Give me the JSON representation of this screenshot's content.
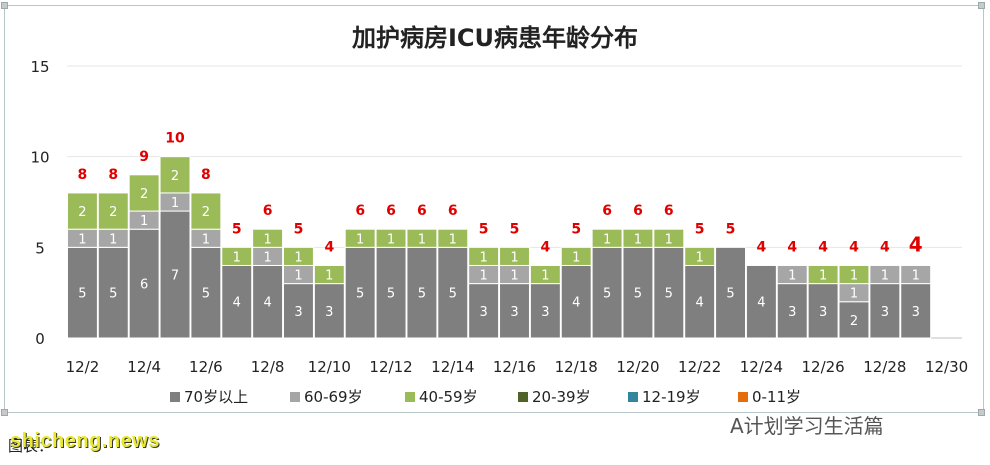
{
  "chart_data": {
    "type": "bar",
    "stacked": true,
    "title": "加护病房ICU病患年龄分布",
    "ylim": [
      0,
      15
    ],
    "yticks": [
      "0",
      "5",
      "10",
      "15"
    ],
    "grid": true,
    "legend_position": "bottom",
    "categories": [
      "12/2",
      "12/3",
      "12/4",
      "12/5",
      "12/6",
      "12/7",
      "12/8",
      "12/9",
      "12/10",
      "12/11",
      "12/12",
      "12/13",
      "12/14",
      "12/15",
      "12/16",
      "12/17",
      "12/18",
      "12/19",
      "12/20",
      "12/21",
      "12/22",
      "12/23",
      "12/24",
      "12/25",
      "12/26",
      "12/27",
      "12/28",
      "12/29",
      "12/30"
    ],
    "tick_labels": [
      "12/2",
      "",
      "12/4",
      "",
      "12/6",
      "",
      "12/8",
      "",
      "12/10",
      "",
      "12/12",
      "",
      "12/14",
      "",
      "12/16",
      "",
      "12/18",
      "",
      "12/20",
      "",
      "12/22",
      "",
      "12/24",
      "",
      "12/26",
      "",
      "12/28",
      "",
      "12/30"
    ],
    "series": [
      {
        "name": "70岁以上",
        "color": "#7f7f7f",
        "values": [
          5,
          5,
          6,
          7,
          5,
          4,
          4,
          3,
          3,
          5,
          5,
          5,
          5,
          3,
          3,
          3,
          4,
          5,
          5,
          5,
          4,
          5,
          4,
          3,
          3,
          2,
          3,
          3,
          0
        ]
      },
      {
        "name": "60-69岁",
        "color": "#a6a6a6",
        "values": [
          1,
          1,
          1,
          1,
          1,
          0,
          1,
          1,
          0,
          0,
          0,
          0,
          0,
          1,
          1,
          0,
          0,
          0,
          0,
          0,
          0,
          0,
          0,
          1,
          0,
          1,
          1,
          1,
          0
        ]
      },
      {
        "name": "40-59岁",
        "color": "#9bbb59",
        "values": [
          2,
          2,
          2,
          2,
          2,
          1,
          1,
          1,
          1,
          1,
          1,
          1,
          1,
          1,
          1,
          1,
          1,
          1,
          1,
          1,
          1,
          0,
          0,
          0,
          1,
          1,
          0,
          0,
          0
        ]
      },
      {
        "name": "20-39岁",
        "color": "#4f6228",
        "values": [
          0,
          0,
          0,
          0,
          0,
          0,
          0,
          0,
          0,
          0,
          0,
          0,
          0,
          0,
          0,
          0,
          0,
          0,
          0,
          0,
          0,
          0,
          0,
          0,
          0,
          0,
          0,
          0,
          0
        ]
      },
      {
        "name": "12-19岁",
        "color": "#31859c",
        "values": [
          0,
          0,
          0,
          0,
          0,
          0,
          0,
          0,
          0,
          0,
          0,
          0,
          0,
          0,
          0,
          0,
          0,
          0,
          0,
          0,
          0,
          0,
          0,
          0,
          0,
          0,
          0,
          0,
          0
        ]
      },
      {
        "name": "0-11岁",
        "color": "#e46c0a",
        "values": [
          0,
          0,
          0,
          0,
          0,
          0,
          0,
          0,
          0,
          0,
          0,
          0,
          0,
          0,
          0,
          0,
          0,
          0,
          0,
          0,
          0,
          0,
          0,
          0,
          0,
          0,
          0,
          0,
          0
        ]
      }
    ],
    "totals": [
      "8",
      "8",
      "9",
      "10",
      "8",
      "5",
      "6",
      "5",
      "4",
      "6",
      "6",
      "6",
      "6",
      "5",
      "5",
      "4",
      "5",
      "6",
      "6",
      "6",
      "5",
      "5",
      "4",
      "4",
      "4",
      "4",
      "4",
      "4",
      ""
    ],
    "total_label_color": "#e00000"
  },
  "watermark": "A计划学习生活篇",
  "credit": "图表：",
  "site": "shicheng.news"
}
